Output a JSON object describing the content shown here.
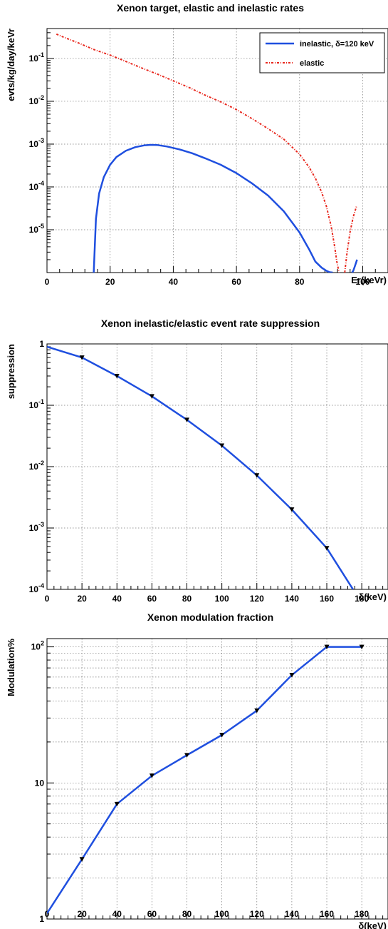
{
  "chart_data": [
    {
      "type": "line",
      "title": "Xenon target, elastic and inelastic rates",
      "xlabel": "Er(keVr)",
      "ylabel": "evts/kg/day/keVr",
      "xlim": [
        0,
        108
      ],
      "ylim": [
        1e-06,
        0.5
      ],
      "yscale": "log",
      "grid": true,
      "legend_position": "top-right",
      "x_ticks": [
        0,
        20,
        40,
        60,
        80,
        100
      ],
      "x_tick_labels": [
        "0",
        "20",
        "40",
        "60",
        "80",
        "100"
      ],
      "y_ticks": [
        1e-05,
        0.0001,
        0.001,
        0.01,
        0.1
      ],
      "y_tick_labels": [
        {
          "base": "10",
          "exp": "-5"
        },
        {
          "base": "10",
          "exp": "-4"
        },
        {
          "base": "10",
          "exp": "-3"
        },
        {
          "base": "10",
          "exp": "-2"
        },
        {
          "base": "10",
          "exp": "-1"
        }
      ],
      "series": [
        {
          "name": "inelastic, δ=120 keV",
          "color": "#1f4fdf",
          "style": "solid",
          "segments": [
            {
              "x": [
                14.8,
                15.5,
                16.5,
                18,
                20,
                22,
                25,
                28,
                31,
                33,
                35,
                38,
                42,
                46,
                50,
                55,
                60,
                65,
                70,
                75,
                80,
                83,
                85,
                87,
                88.5,
                89.5,
                90.5
              ],
              "y": [
                1e-06,
                1.8e-05,
                7e-05,
                0.00017,
                0.00033,
                0.0005,
                0.0007,
                0.00085,
                0.00094,
                0.00096,
                0.00095,
                0.00088,
                0.00075,
                0.00061,
                0.00047,
                0.00033,
                0.00021,
                0.00012,
                6.3e-05,
                2.7e-05,
                8.6e-06,
                3.5e-06,
                1.8e-06,
                1.3e-06,
                1.1e-06,
                1.02e-06,
                1e-06
              ]
            },
            {
              "x": [
                96.6,
                97,
                97.5,
                98.2
              ],
              "y": [
                1e-06,
                1.1e-06,
                1.4e-06,
                2e-06
              ]
            }
          ]
        },
        {
          "name": "elastic",
          "color": "#e8271d",
          "style": "dashdot",
          "segments": [
            {
              "x": [
                3,
                5,
                10,
                15,
                20,
                25,
                30,
                35,
                40,
                45,
                50,
                55,
                60,
                65,
                70,
                75,
                80,
                83,
                85,
                87,
                88.5,
                90,
                91,
                91.8,
                92.5
              ],
              "y": [
                0.37,
                0.32,
                0.23,
                0.16,
                0.12,
                0.085,
                0.06,
                0.043,
                0.03,
                0.021,
                0.014,
                0.0097,
                0.0064,
                0.0039,
                0.0023,
                0.0013,
                0.00058,
                0.00029,
                0.00016,
                7.5e-05,
                3.5e-05,
                1.2e-05,
                4.5e-06,
                1.8e-06,
                1e-06
              ]
            },
            {
              "x": [
                94.3,
                95,
                96,
                97,
                98
              ],
              "y": [
                1e-06,
                2.8e-06,
                9e-06,
                2e-05,
                3.5e-05
              ]
            }
          ]
        }
      ]
    },
    {
      "type": "line",
      "title": "Xenon inelastic/elastic event rate suppression",
      "xlabel": "δ(keV)",
      "ylabel": "suppression",
      "xlim": [
        0,
        195
      ],
      "ylim": [
        0.0001,
        1
      ],
      "yscale": "log",
      "grid": true,
      "x_ticks": [
        0,
        20,
        40,
        60,
        80,
        100,
        120,
        140,
        160,
        180
      ],
      "x_tick_labels": [
        "0",
        "20",
        "40",
        "60",
        "80",
        "100",
        "120",
        "140",
        "160",
        "180"
      ],
      "y_ticks": [
        0.0001,
        0.001,
        0.01,
        0.1,
        1
      ],
      "y_tick_labels": [
        {
          "base": "10",
          "exp": "-4"
        },
        {
          "base": "10",
          "exp": "-3"
        },
        {
          "base": "10",
          "exp": "-2"
        },
        {
          "base": "10",
          "exp": "-1"
        },
        {
          "base": "1",
          "exp": ""
        }
      ],
      "series": [
        {
          "color": "#1f4fdf",
          "style": "solid",
          "x": [
            0,
            20,
            40,
            60,
            80,
            100,
            120,
            140,
            160,
            175
          ],
          "y": [
            0.9,
            0.6,
            0.3,
            0.14,
            0.058,
            0.022,
            0.0072,
            0.002,
            0.00047,
            0.0001
          ],
          "markers": {
            "x": [
              20,
              40,
              60,
              80,
              100,
              120,
              140,
              160
            ],
            "y": [
              0.6,
              0.3,
              0.14,
              0.058,
              0.022,
              0.0072,
              0.002,
              0.00047
            ]
          }
        }
      ]
    },
    {
      "type": "line",
      "title": "Xenon modulation fraction",
      "xlabel": "δ(keV)",
      "ylabel": "Modulation%",
      "xlim": [
        0,
        195
      ],
      "ylim": [
        1,
        115
      ],
      "yscale": "log",
      "grid": true,
      "x_ticks": [
        0,
        20,
        40,
        60,
        80,
        100,
        120,
        140,
        160,
        180
      ],
      "x_tick_labels": [
        "0",
        "20",
        "40",
        "60",
        "80",
        "100",
        "120",
        "140",
        "160",
        "180"
      ],
      "y_ticks": [
        1,
        10,
        100
      ],
      "y_tick_labels": [
        {
          "base": "1",
          "exp": ""
        },
        {
          "base": "10",
          "exp": ""
        },
        {
          "base": "10",
          "exp": "2"
        }
      ],
      "series": [
        {
          "color": "#1f4fdf",
          "style": "solid",
          "x": [
            0,
            20,
            40,
            60,
            80,
            100,
            120,
            140,
            160,
            180
          ],
          "y": [
            1.1,
            2.75,
            7,
            11.3,
            16,
            22.5,
            34,
            62,
            100,
            100
          ],
          "markers": {
            "x": [
              20,
              40,
              60,
              80,
              100,
              120,
              140,
              160,
              180
            ],
            "y": [
              2.75,
              7,
              11.3,
              16,
              22.5,
              34,
              62,
              100,
              100
            ]
          }
        }
      ]
    }
  ]
}
